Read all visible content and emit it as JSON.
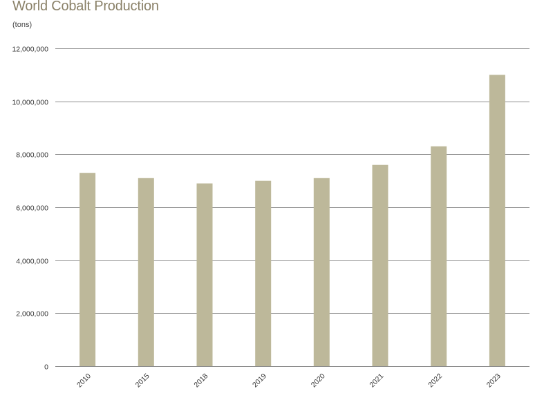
{
  "chart_data": {
    "type": "bar",
    "title": "World Cobalt Production",
    "unit_label": "(tons)",
    "categories": [
      "2010",
      "2015",
      "2018",
      "2019",
      "2020",
      "2021",
      "2022",
      "2023"
    ],
    "values": [
      7300000,
      7100000,
      6900000,
      7000000,
      7100000,
      7600000,
      8300000,
      11000000
    ],
    "ylim": [
      0,
      12000000
    ],
    "yticks": [
      0,
      2000000,
      4000000,
      6000000,
      8000000,
      10000000,
      12000000
    ],
    "ytick_labels": [
      "0",
      "2,000,000",
      "4,000,000",
      "6,000,000",
      "8,000,000",
      "10,000,000",
      "12,000,000"
    ],
    "grid": true,
    "bar_color": "#bdb89a",
    "grid_color": "#8c8c8c"
  }
}
